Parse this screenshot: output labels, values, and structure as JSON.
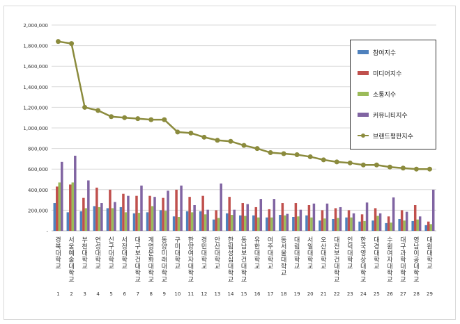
{
  "chart_data": {
    "type": "bar",
    "title": "",
    "xlabel": "",
    "ylabel": "",
    "ylim": [
      0,
      2000000
    ],
    "yticks": [
      "-",
      "200,000",
      "400,000",
      "600,000",
      "800,000",
      "1,000,000",
      "1,200,000",
      "1,400,000",
      "1,600,000",
      "1,800,000",
      "2,000,000"
    ],
    "grid": true,
    "legend_position": "right",
    "categories": [
      "경북대학교",
      "서울예술대학교",
      "부천대학교",
      "연성대학교",
      "신구대학교",
      "서정대학교",
      "대구보건대학교",
      "계명문화대학교",
      "동양미래대학교",
      "구미대학교",
      "한양여자대학교",
      "경민대학교",
      "안산대학교",
      "한림성심대학교",
      "동남보건대학교",
      "유한대학교",
      "여주대학교",
      "동서울대학교",
      "대림대학교",
      "서일대학교",
      "오산대학교",
      "대전보건대학교",
      "인덕대학교",
      "한국영상대학교",
      "대경대학교",
      "수원여자대학교",
      "대구과학대학교",
      "영남이공대학교",
      "대원대학교"
    ],
    "numbers": [
      "1",
      "2",
      "3",
      "4",
      "5",
      "6",
      "7",
      "8",
      "9",
      "10",
      "11",
      "12",
      "13",
      "14",
      "15",
      "16",
      "17",
      "18",
      "19",
      "20",
      "21",
      "22",
      "23",
      "24",
      "25",
      "26",
      "27",
      "28",
      "29"
    ],
    "series": [
      {
        "name": "참여지수",
        "color": "#4f81bd",
        "values": [
          270000,
          180000,
          190000,
          240000,
          220000,
          230000,
          170000,
          180000,
          200000,
          140000,
          190000,
          190000,
          110000,
          170000,
          150000,
          150000,
          130000,
          155000,
          135000,
          150000,
          100000,
          115000,
          130000,
          90000,
          100000,
          75000,
          115000,
          95000,
          55000
        ]
      },
      {
        "name": "미디어지수",
        "color": "#c0504d",
        "values": [
          430000,
          450000,
          320000,
          420000,
          400000,
          360000,
          340000,
          340000,
          320000,
          400000,
          330000,
          340000,
          200000,
          330000,
          270000,
          230000,
          210000,
          270000,
          270000,
          250000,
          200000,
          220000,
          200000,
          160000,
          220000,
          140000,
          200000,
          250000,
          90000
        ]
      },
      {
        "name": "소통지수",
        "color": "#9bbb59",
        "values": [
          470000,
          470000,
          220000,
          230000,
          220000,
          180000,
          175000,
          240000,
          195000,
          135000,
          180000,
          160000,
          125000,
          155000,
          145000,
          130000,
          130000,
          150000,
          140000,
          130000,
          120000,
          125000,
          130000,
          95000,
          145000,
          80000,
          100000,
          110000,
          65000
        ]
      },
      {
        "name": "커뮤니티지수",
        "color": "#8064a2",
        "values": [
          670000,
          730000,
          490000,
          270000,
          280000,
          340000,
          440000,
          330000,
          390000,
          440000,
          250000,
          205000,
          460000,
          205000,
          260000,
          310000,
          310000,
          165000,
          205000,
          265000,
          265000,
          230000,
          170000,
          275000,
          170000,
          325000,
          185000,
          140000,
          400000
        ]
      },
      {
        "name": "브랜드평판지수",
        "color": "#8b8b3d",
        "type": "line",
        "values": [
          1840000,
          1820000,
          1200000,
          1170000,
          1110000,
          1100000,
          1090000,
          1080000,
          1080000,
          960000,
          950000,
          910000,
          880000,
          870000,
          830000,
          800000,
          760000,
          750000,
          740000,
          720000,
          690000,
          670000,
          660000,
          640000,
          640000,
          620000,
          610000,
          600000,
          600000
        ]
      }
    ]
  }
}
